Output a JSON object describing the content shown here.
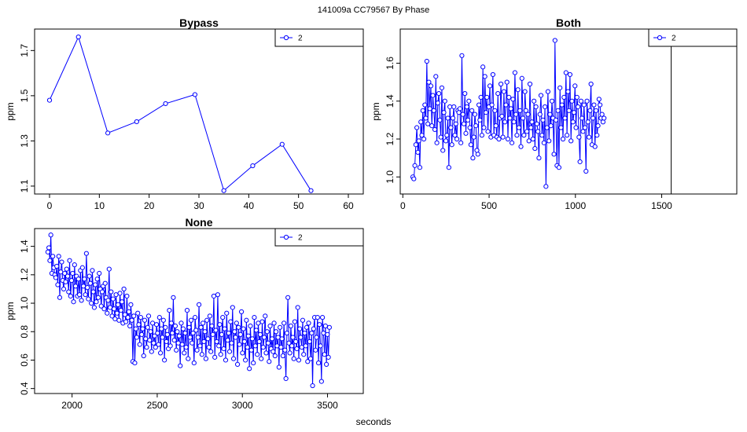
{
  "figure": {
    "suptitle": "141009a    CC79567   By Phase",
    "xlabel": "seconds"
  },
  "series_color": "#0000ff",
  "chart_data": [
    {
      "type": "line",
      "title": "Bypass",
      "xlabel": "",
      "ylabel": "ppm",
      "legend": {
        "entries": [
          "2"
        ],
        "position": "top-right"
      },
      "xlim": [
        -3,
        63
      ],
      "ylim": [
        1.065,
        1.795
      ],
      "xticks": [
        0,
        10,
        20,
        30,
        40,
        50,
        60
      ],
      "yticks": [
        1.1,
        1.3,
        1.5,
        1.7
      ],
      "vline": null,
      "series": [
        {
          "name": "2",
          "x": [
            0,
            5.8,
            11.7,
            17.5,
            23.3,
            29.2,
            35,
            40.8,
            46.7,
            52.5
          ],
          "y": [
            1.48,
            1.76,
            1.335,
            1.385,
            1.465,
            1.505,
            1.08,
            1.19,
            1.285,
            1.08
          ]
        }
      ]
    },
    {
      "type": "line",
      "title": "Both",
      "xlabel": "",
      "ylabel": "ppm",
      "legend": {
        "entries": [
          "2"
        ],
        "position": "top-right"
      },
      "xlim": [
        -15,
        1935
      ],
      "ylim": [
        0.91,
        1.78
      ],
      "xticks": [
        0,
        500,
        1000,
        1500
      ],
      "yticks": [
        1.0,
        1.2,
        1.4,
        1.6
      ],
      "vline": 1555,
      "series": [
        {
          "name": "2",
          "x_start": 58,
          "x_step": 5.8,
          "y": [
            1.0,
            0.99,
            1.06,
            1.17,
            1.26,
            1.13,
            1.19,
            1.05,
            1.29,
            1.22,
            1.35,
            1.2,
            1.38,
            1.31,
            1.61,
            1.28,
            1.5,
            1.36,
            1.48,
            1.27,
            1.43,
            1.35,
            1.25,
            1.53,
            1.18,
            1.39,
            1.44,
            1.3,
            1.21,
            1.47,
            1.14,
            1.34,
            1.4,
            1.19,
            1.22,
            1.31,
            1.05,
            1.37,
            1.26,
            1.17,
            1.31,
            1.37,
            1.22,
            1.28,
            1.2,
            1.35,
            1.34,
            1.36,
            1.18,
            1.64,
            1.33,
            1.28,
            1.44,
            1.23,
            1.37,
            1.3,
            1.4,
            1.26,
            1.17,
            1.35,
            1.1,
            1.21,
            1.33,
            1.27,
            1.14,
            1.12,
            1.38,
            1.3,
            1.42,
            1.22,
            1.58,
            1.26,
            1.53,
            1.34,
            1.42,
            1.24,
            1.37,
            1.48,
            1.21,
            1.38,
            1.54,
            1.22,
            1.35,
            1.27,
            1.21,
            1.44,
            1.2,
            1.31,
            1.49,
            1.32,
            1.21,
            1.45,
            1.29,
            1.38,
            1.5,
            1.2,
            1.42,
            1.31,
            1.36,
            1.18,
            1.41,
            1.29,
            1.55,
            1.33,
            1.22,
            1.46,
            1.26,
            1.35,
            1.16,
            1.52,
            1.31,
            1.22,
            1.45,
            1.35,
            1.24,
            1.33,
            1.19,
            1.49,
            1.26,
            1.29,
            1.2,
            1.4,
            1.15,
            1.37,
            1.28,
            1.24,
            1.1,
            1.33,
            1.43,
            1.22,
            1.3,
            1.18,
            1.37,
            0.95,
            1.26,
            1.45,
            1.19,
            1.33,
            1.27,
            1.4,
            1.31,
            1.12,
            1.72,
            1.3,
            1.06,
            1.35,
            1.05,
            1.47,
            1.26,
            1.38,
            1.2,
            1.42,
            1.31,
            1.55,
            1.22,
            1.45,
            1.35,
            1.54,
            1.19,
            1.4,
            1.29,
            1.34,
            1.48,
            1.26,
            1.42,
            1.37,
            1.21,
            1.08,
            1.4,
            1.31,
            1.24,
            1.38,
            1.26,
            1.03,
            1.4,
            1.29,
            1.21,
            1.35,
            1.49,
            1.17,
            1.31,
            1.38,
            1.16,
            1.35,
            1.22,
            1.27,
            1.41,
            1.38,
            1.31,
            1.33,
            1.29,
            1.31
          ]
        }
      ]
    },
    {
      "type": "line",
      "title": "None",
      "xlabel": "",
      "ylabel": "ppm",
      "legend": {
        "entries": [
          "2"
        ],
        "position": "top-right"
      },
      "xlim": [
        1780,
        3710
      ],
      "ylim": [
        0.365,
        1.525
      ],
      "xticks": [
        2000,
        2500,
        3000,
        3500
      ],
      "yticks": [
        0.4,
        0.6,
        0.8,
        1.0,
        1.2,
        1.4
      ],
      "vline": null,
      "series": [
        {
          "name": "2",
          "x_start": 1858,
          "x_step": 5.8,
          "y": [
            1.36,
            1.39,
            1.3,
            1.48,
            1.21,
            1.33,
            1.25,
            1.2,
            1.18,
            1.26,
            1.13,
            1.33,
            1.04,
            1.22,
            1.29,
            1.16,
            1.1,
            1.21,
            1.15,
            1.24,
            1.19,
            1.08,
            1.3,
            1.05,
            1.16,
            1.21,
            1.01,
            1.27,
            1.12,
            1.19,
            1.05,
            1.17,
            1.06,
            1.23,
            1.02,
            1.25,
            1.12,
            1.17,
            1.06,
            1.35,
            1.11,
            1.03,
            1.19,
            1.14,
            1.0,
            1.23,
            1.08,
            0.97,
            1.13,
            1.01,
            1.17,
            1.04,
            1.21,
            1.1,
            0.98,
            1.08,
            1.12,
            0.96,
            1.14,
            1.04,
            0.93,
            1.02,
            1.24,
            0.97,
            1.08,
            0.91,
            1.03,
            0.96,
            0.89,
            1.06,
            0.93,
            0.99,
            0.88,
            1.07,
            0.95,
            1.01,
            0.86,
            1.1,
            0.92,
            0.87,
            1.05,
            0.9,
            0.94,
            0.84,
            0.99,
            0.88,
            0.59,
            0.91,
            0.58,
            0.82,
            0.76,
            0.93,
            0.85,
            0.71,
            0.9,
            0.78,
            0.82,
            0.63,
            0.88,
            0.75,
            0.69,
            0.83,
            0.91,
            0.74,
            0.8,
            0.66,
            0.86,
            0.72,
            0.77,
            0.69,
            0.85,
            0.79,
            0.71,
            0.9,
            0.65,
            0.82,
            0.76,
            0.88,
            0.6,
            0.83,
            0.73,
            0.78,
            0.68,
            0.95,
            0.7,
            0.86,
            0.79,
            1.04,
            0.74,
            0.84,
            0.67,
            0.8,
            0.72,
            0.77,
            0.56,
            0.86,
            0.71,
            0.82,
            0.65,
            0.79,
            0.69,
            0.95,
            0.61,
            0.83,
            0.76,
            0.88,
            0.72,
            0.79,
            0.58,
            0.9,
            0.81,
            0.67,
            0.76,
            0.99,
            0.7,
            0.83,
            0.64,
            0.86,
            0.73,
            0.8,
            0.61,
            0.88,
            0.75,
            0.69,
            0.91,
            0.66,
            0.84,
            0.78,
            1.05,
            0.62,
            0.81,
            0.73,
            1.06,
            0.7,
            0.85,
            0.64,
            0.78,
            0.9,
            0.68,
            0.82,
            0.6,
            0.93,
            0.74,
            0.79,
            0.66,
            0.87,
            0.72,
            0.97,
            0.61,
            0.8,
            0.76,
            0.86,
            0.57,
            0.83,
            0.71,
            0.78,
            0.94,
            0.65,
            0.82,
            0.73,
            0.6,
            0.88,
            0.69,
            0.77,
            0.54,
            0.84,
            0.67,
            0.75,
            0.58,
            0.9,
            0.7,
            0.81,
            0.64,
            0.86,
            0.73,
            0.78,
            0.61,
            0.87,
            0.69,
            0.76,
            0.91,
            0.65,
            0.8,
            0.72,
            0.59,
            0.84,
            0.68,
            0.75,
            0.66,
            0.86,
            0.63,
            0.8,
            0.7,
            0.76,
            0.55,
            0.83,
            0.69,
            0.75,
            0.63,
            0.86,
            0.67,
            0.47,
            0.79,
            1.04,
            0.72,
            0.65,
            0.84,
            0.7,
            0.76,
            0.61,
            0.87,
            0.73,
            0.68,
            0.97,
            0.6,
            0.82,
            0.76,
            0.69,
            0.88,
            0.64,
            0.79,
            0.7,
            0.83,
            0.59,
            0.86,
            0.73,
            0.61,
            0.79,
            0.42,
            0.82,
            0.9,
            0.67,
            0.76,
            0.9,
            0.58,
            0.85,
            0.7,
            0.45,
            0.9,
            0.79,
            0.64,
            0.84,
            0.57,
            0.78,
            0.62,
            0.83
          ]
        }
      ]
    }
  ]
}
